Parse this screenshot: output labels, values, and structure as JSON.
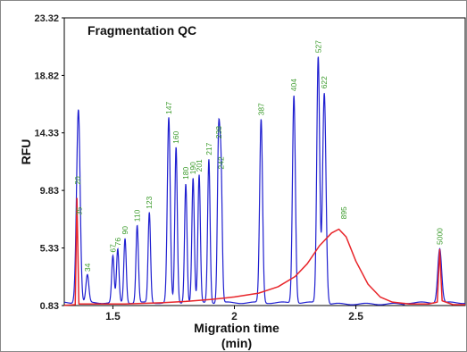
{
  "chart_data": {
    "type": "line",
    "title": "Fragmentation QC",
    "xlabel": "Migration time",
    "xlabel_unit": "(min)",
    "ylabel": "RFU",
    "xlim": [
      1.3,
      2.95
    ],
    "ylim": [
      0.83,
      23.32
    ],
    "y_ticks": [
      "23.32",
      "18.82",
      "14.33",
      "9.83",
      "5.33",
      "0.83"
    ],
    "x_ticks": [
      "1.5",
      "2",
      "2.5"
    ],
    "grid": false,
    "colors": {
      "trace": "#1f1fd0",
      "ladder": "#e8252a",
      "label": "#3a9a2a",
      "frame": "#000000"
    },
    "series": [
      {
        "color": "#1f1fd0",
        "peaks": [
          {
            "x": 1.355,
            "y": 10.0,
            "label": "20",
            "w": 0.007
          },
          {
            "x": 1.36,
            "y": 7.6,
            "label": "35",
            "w": 0.006
          },
          {
            "x": 1.365,
            "y": 2.6,
            "label": "",
            "w": 0.006
          },
          {
            "x": 1.395,
            "y": 3.2,
            "label": "34",
            "w": 0.006
          },
          {
            "x": 1.5,
            "y": 4.7,
            "label": "67",
            "w": 0.005
          },
          {
            "x": 1.52,
            "y": 5.2,
            "label": "76",
            "w": 0.005
          },
          {
            "x": 1.55,
            "y": 6.1,
            "label": "90",
            "w": 0.005
          },
          {
            "x": 1.6,
            "y": 7.1,
            "label": "110",
            "w": 0.005
          },
          {
            "x": 1.65,
            "y": 8.1,
            "label": "123",
            "w": 0.005
          },
          {
            "x": 1.73,
            "y": 15.5,
            "label": "147",
            "w": 0.006
          },
          {
            "x": 1.76,
            "y": 13.2,
            "label": "160",
            "w": 0.005
          },
          {
            "x": 1.8,
            "y": 10.4,
            "label": "180",
            "w": 0.005
          },
          {
            "x": 1.83,
            "y": 10.8,
            "label": "190",
            "w": 0.005
          },
          {
            "x": 1.855,
            "y": 11.0,
            "label": "201",
            "w": 0.005
          },
          {
            "x": 1.895,
            "y": 12.3,
            "label": "217",
            "w": 0.005
          },
          {
            "x": 1.935,
            "y": 13.6,
            "label": "238",
            "w": 0.005
          },
          {
            "x": 1.945,
            "y": 11.2,
            "label": "242",
            "w": 0.005
          },
          {
            "x": 2.11,
            "y": 15.4,
            "label": "387",
            "w": 0.006
          },
          {
            "x": 2.245,
            "y": 17.3,
            "label": "404",
            "w": 0.006
          },
          {
            "x": 2.345,
            "y": 20.3,
            "label": "527",
            "w": 0.006
          },
          {
            "x": 2.37,
            "y": 17.5,
            "label": "622",
            "w": 0.007
          },
          {
            "x": 2.845,
            "y": 5.3,
            "label": "5000",
            "w": 0.008
          }
        ]
      },
      {
        "color": "#e8252a",
        "points": [
          [
            1.3,
            0.85
          ],
          [
            1.345,
            0.9
          ],
          [
            1.352,
            9.2
          ],
          [
            1.36,
            0.95
          ],
          [
            1.4,
            0.95
          ],
          [
            1.55,
            0.95
          ],
          [
            1.7,
            1.05
          ],
          [
            1.8,
            1.15
          ],
          [
            1.9,
            1.3
          ],
          [
            2.0,
            1.5
          ],
          [
            2.1,
            1.8
          ],
          [
            2.18,
            2.3
          ],
          [
            2.25,
            3.1
          ],
          [
            2.3,
            4.1
          ],
          [
            2.35,
            5.5
          ],
          [
            2.4,
            6.5
          ],
          [
            2.43,
            6.8
          ],
          [
            2.46,
            6.2
          ],
          [
            2.5,
            4.3
          ],
          [
            2.55,
            2.5
          ],
          [
            2.6,
            1.5
          ],
          [
            2.65,
            1.1
          ],
          [
            2.72,
            0.95
          ],
          [
            2.8,
            0.95
          ],
          [
            2.835,
            1.1
          ],
          [
            2.845,
            5.2
          ],
          [
            2.855,
            1.2
          ],
          [
            2.9,
            0.9
          ],
          [
            2.95,
            0.9
          ]
        ],
        "peak_label": {
          "x": 2.45,
          "y": 7.3,
          "label": "895"
        }
      }
    ]
  }
}
